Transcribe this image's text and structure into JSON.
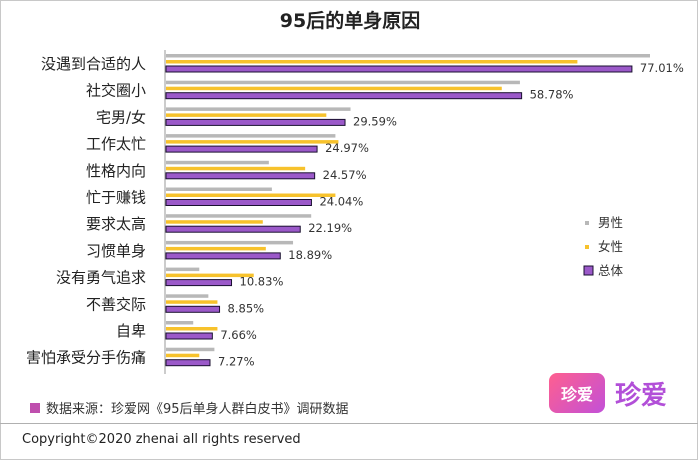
{
  "chart_data": {
    "type": "bar",
    "orientation": "horizontal",
    "title": "95后的单身原因",
    "categories": [
      "没遇到合适的人",
      "社交圈小",
      "宅男/女",
      "工作太忙",
      "性格内向",
      "忙于赚钱",
      "要求太高",
      "习惯单身",
      "没有勇气追求",
      "不善交际",
      "自卑",
      "害怕承受分手伤痛"
    ],
    "series": [
      {
        "name": "男性",
        "color": "#b8b8b8",
        "values": [
          80.0,
          58.5,
          30.5,
          28.0,
          17.0,
          17.5,
          24.0,
          21.0,
          5.5,
          7.0,
          4.5,
          8.0
        ]
      },
      {
        "name": "女性",
        "color": "#f7c22c",
        "values": [
          68.0,
          55.5,
          26.5,
          28.5,
          23.0,
          28.0,
          16.0,
          16.5,
          14.5,
          8.5,
          8.5,
          5.5
        ]
      },
      {
        "name": "总体",
        "color": "#9b59c9",
        "values": [
          77.01,
          58.78,
          29.59,
          24.97,
          24.57,
          24.04,
          22.19,
          18.89,
          10.83,
          8.85,
          7.66,
          7.27
        ]
      }
    ],
    "data_labels": [
      "77.01%",
      "58.78%",
      "29.59%",
      "24.97%",
      "24.57%",
      "24.04%",
      "22.19%",
      "18.89%",
      "10.83%",
      "8.85%",
      "7.66%",
      "7.27%"
    ],
    "xlim": [
      0,
      100
    ],
    "grid": false,
    "legend_position": "right"
  },
  "source_text": "数据来源：珍爱网《95后单身人群白皮书》调研数据",
  "copyright": "Copyright©2020 zhenai all rights reserved",
  "logo": {
    "badge_text": "珍爱",
    "text": "珍爱"
  }
}
